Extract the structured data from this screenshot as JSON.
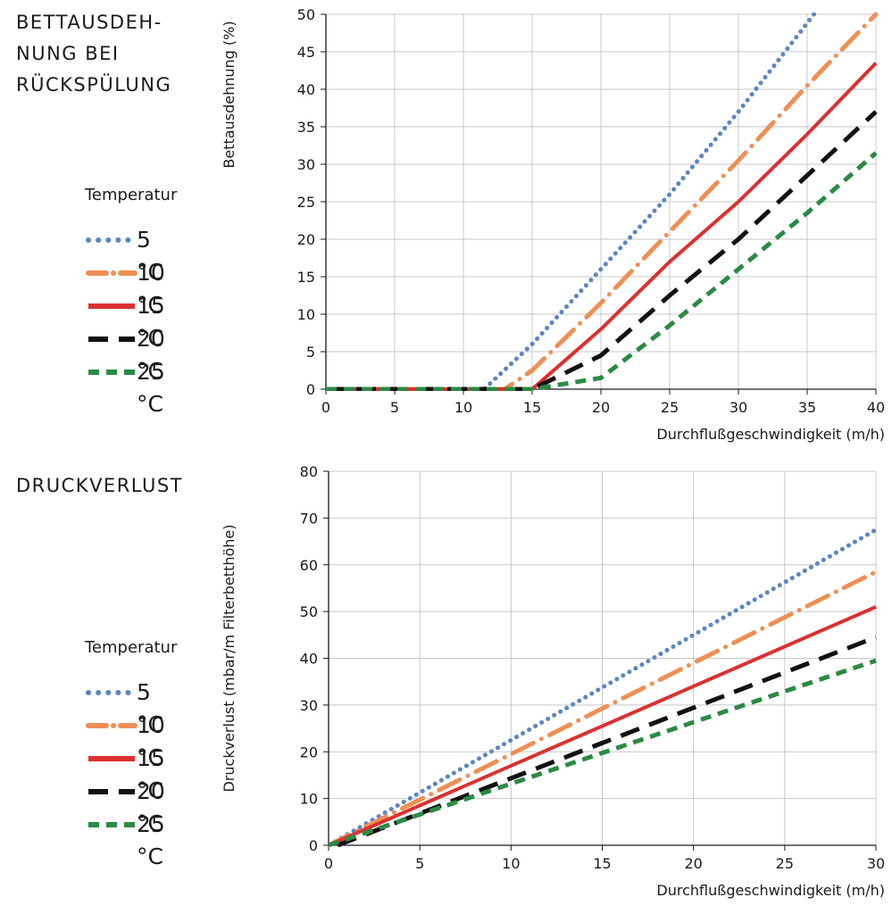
{
  "top": {
    "title": "BETTAUSDEH-\nNUNG BEI\nRÜCKSPÜLUNG",
    "legend_title": "Temperatur",
    "ylabel": "Bettausdehnung (%)",
    "xlabel": "Durchflußgeschwindigkeit (m/h)"
  },
  "bottom": {
    "title": "DRUCKVERLUST",
    "legend_title": "Temperatur",
    "ylabel": "Druckverlust  (mbar/m Filterbetthöhe)",
    "xlabel": "Durchflußgeschwindigkeit (m/h)"
  },
  "series_styles": [
    {
      "name": "5 °C",
      "color": "#5b86c3",
      "style": "dotted"
    },
    {
      "name": "10 °C",
      "color": "#ef8f54",
      "style": "dashdot"
    },
    {
      "name": "15 °C",
      "color": "#dc3030",
      "style": "solid"
    },
    {
      "name": "20 °C",
      "color": "#111111",
      "style": "dashed"
    },
    {
      "name": "25 °C",
      "color": "#2b8a44",
      "style": "shortdash"
    }
  ],
  "chart_data": [
    {
      "type": "line",
      "title": "BETTAUSDEH-\nNUNG BEI\nRÜCKSPÜLUNG",
      "xlabel": "Durchflußgeschwindigkeit (m/h)",
      "ylabel": "Bettausdehnung (%)",
      "xlim": [
        0,
        40
      ],
      "ylim": [
        0,
        50
      ],
      "xticks": [
        0,
        5,
        10,
        15,
        20,
        25,
        30,
        35,
        40
      ],
      "yticks": [
        0,
        5,
        10,
        15,
        20,
        25,
        30,
        35,
        40,
        45,
        50
      ],
      "grid": true,
      "legend": "left",
      "series": [
        {
          "name": "5 °C",
          "x": [
            0,
            11.5,
            15,
            20,
            25,
            30,
            35.5
          ],
          "y": [
            0,
            0,
            6,
            16,
            26,
            37,
            50
          ]
        },
        {
          "name": "10 °C",
          "x": [
            0,
            13,
            15,
            20,
            25,
            30,
            35,
            40
          ],
          "y": [
            0,
            0,
            2.5,
            11.5,
            21,
            30.5,
            40.5,
            50
          ]
        },
        {
          "name": "15 °C",
          "x": [
            0,
            15,
            20,
            25,
            30,
            35,
            40
          ],
          "y": [
            0,
            0,
            8,
            17,
            25,
            34,
            43.5
          ]
        },
        {
          "name": "20 °C",
          "x": [
            0,
            15,
            20,
            25,
            30,
            35,
            40
          ],
          "y": [
            0,
            0,
            4.5,
            12.5,
            20,
            28.5,
            37
          ]
        },
        {
          "name": "25 °C",
          "x": [
            0,
            15,
            20,
            25,
            30,
            35,
            40
          ],
          "y": [
            0,
            0,
            1.5,
            8.5,
            16,
            23.5,
            31.5
          ]
        }
      ]
    },
    {
      "type": "line",
      "title": "DRUCKVERLUST",
      "xlabel": "Durchflußgeschwindigkeit (m/h)",
      "ylabel": "Druckverlust  (mbar/m Filterbetthöhe)",
      "xlim": [
        0,
        30
      ],
      "ylim": [
        0,
        80
      ],
      "xticks": [
        0,
        5,
        10,
        15,
        20,
        25,
        30
      ],
      "yticks": [
        0,
        10,
        20,
        30,
        40,
        50,
        60,
        70,
        80
      ],
      "grid": true,
      "legend": "left",
      "series": [
        {
          "name": "5 °C",
          "x": [
            0,
            30
          ],
          "y": [
            0,
            67.5
          ]
        },
        {
          "name": "10 °C",
          "x": [
            0,
            30
          ],
          "y": [
            0,
            58.5
          ]
        },
        {
          "name": "15 °C",
          "x": [
            0,
            30
          ],
          "y": [
            0,
            51
          ]
        },
        {
          "name": "20 °C",
          "x": [
            0.5,
            30
          ],
          "y": [
            0,
            44.5
          ]
        },
        {
          "name": "25 °C",
          "x": [
            0,
            30
          ],
          "y": [
            0,
            39.5
          ]
        }
      ]
    }
  ]
}
